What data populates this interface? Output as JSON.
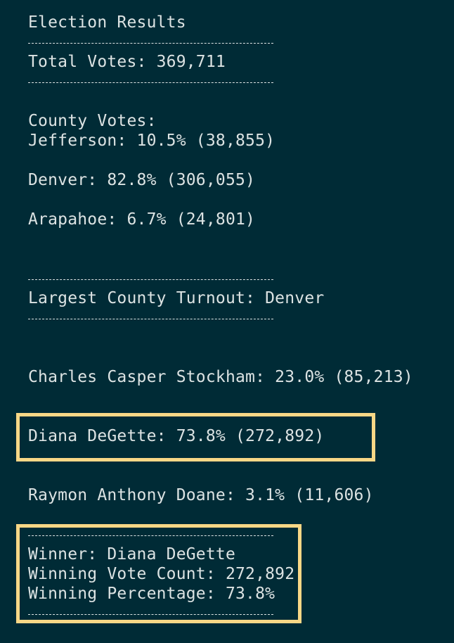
{
  "accent_color": "#f8d786",
  "background_color": "#002b36",
  "report": {
    "title": "Election Results",
    "total_votes": "Total Votes: 369,711",
    "county_header": "County Votes:",
    "counties": [
      "Jefferson: 10.5% (38,855)",
      "Denver: 82.8% (306,055)",
      "Arapahoe: 6.7% (24,801)"
    ],
    "largest_county": "Largest County Turnout: Denver",
    "candidates": [
      "Charles Casper Stockham: 23.0% (85,213)",
      "Diana DeGette: 73.8% (272,892)",
      "Raymon Anthony Doane: 3.1% (11,606)"
    ],
    "winner": {
      "name": "Winner: Diana DeGette",
      "vote_count": "Winning Vote Count: 272,892",
      "percentage": "Winning Percentage: 73.8%"
    }
  }
}
